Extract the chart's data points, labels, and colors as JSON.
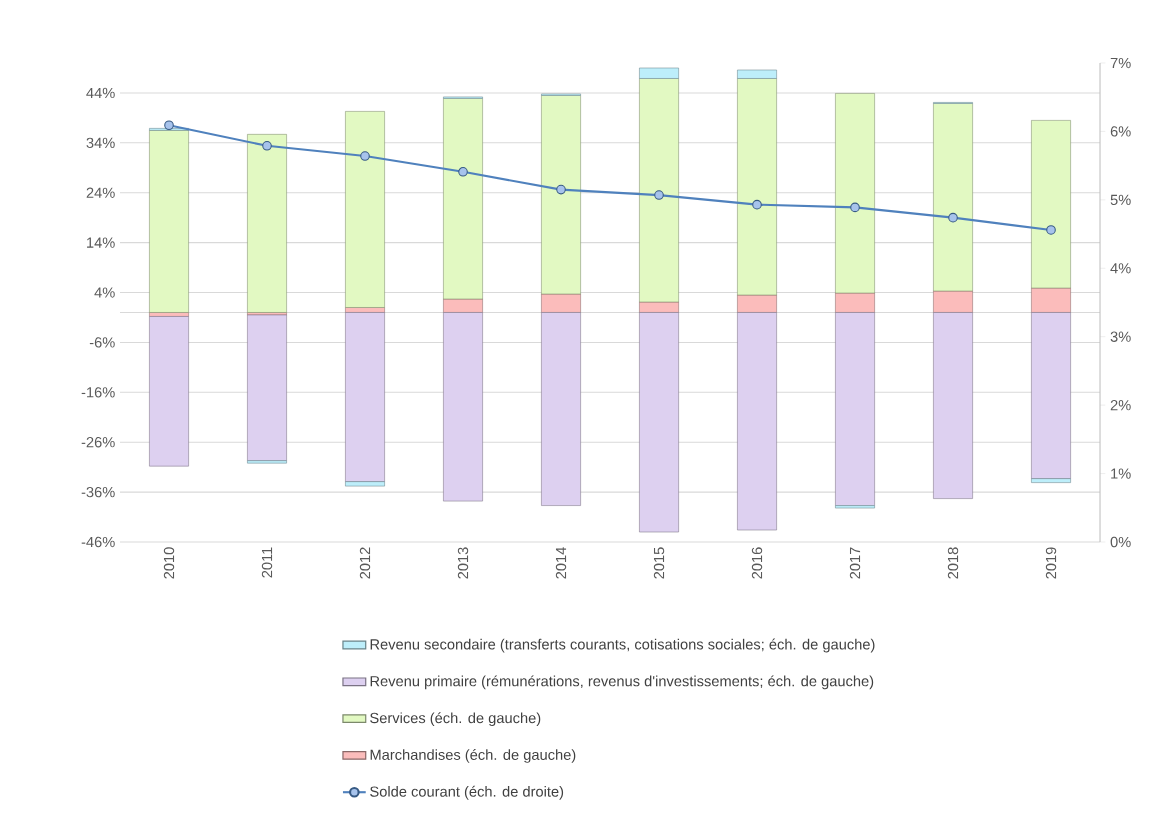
{
  "chart_data": {
    "type": "bar",
    "stacked": true,
    "categories": [
      "2010",
      "2011",
      "2012",
      "2013",
      "2014",
      "2015",
      "2016",
      "2017",
      "2018",
      "2019"
    ],
    "ylim": [
      -46,
      50
    ],
    "yticks": [
      {
        "value": 44,
        "label": "44%"
      },
      {
        "value": 34,
        "label": "34%"
      },
      {
        "value": 24,
        "label": "24%"
      },
      {
        "value": 14,
        "label": "14%"
      },
      {
        "value": 4,
        "label": "4%"
      },
      {
        "value": -6,
        "label": "-6%"
      },
      {
        "value": -16,
        "label": "-16%"
      },
      {
        "value": -26,
        "label": "-26%"
      },
      {
        "value": -36,
        "label": "-36%"
      },
      {
        "value": -46,
        "label": "-46%"
      }
    ],
    "y2lim": [
      0,
      7
    ],
    "y2ticks": [
      {
        "value": 0,
        "label": "0%"
      },
      {
        "value": 1,
        "label": "1%"
      },
      {
        "value": 2,
        "label": "2%"
      },
      {
        "value": 3,
        "label": "3%"
      },
      {
        "value": 4,
        "label": "4%"
      },
      {
        "value": 5,
        "label": "5%"
      },
      {
        "value": 6,
        "label": "6%"
      },
      {
        "value": 7,
        "label": "7%"
      }
    ],
    "grid": "y",
    "legend": "bottom",
    "marker": "circle",
    "series": [
      {
        "name": "Marchandises (éch. de gauche)",
        "color": "#fbbcbb",
        "values": [
          -0.8,
          -0.5,
          1.0,
          2.7,
          3.7,
          2.1,
          3.5,
          3.9,
          4.3,
          4.9
        ]
      },
      {
        "name": "Services (éch. de gauche)",
        "color": "#e2f9c2",
        "values": [
          36.5,
          35.7,
          39.3,
          40.2,
          39.8,
          44.8,
          43.4,
          40.0,
          37.6,
          33.6
        ]
      },
      {
        "name": "Revenu primaire (rémunérations, revenus d'investissements; éch. de gauche)",
        "color": "#ddd0f0",
        "values": [
          -30.0,
          -29.2,
          -33.9,
          -37.8,
          -38.7,
          -44.0,
          -43.6,
          -38.7,
          -37.3,
          -33.3
        ]
      },
      {
        "name": "Revenu secondaire (transferts courants, cotisations sociales; éch. de gauche)",
        "color": "#bdeefa",
        "values": [
          0.4,
          -0.5,
          -0.9,
          0.3,
          0.3,
          2.1,
          1.7,
          -0.5,
          0.2,
          -0.8
        ]
      },
      {
        "name": "Solde courant (éch. de droite)",
        "type": "line",
        "axis": "y2",
        "color": "#4f81bd",
        "values": [
          6.09,
          5.79,
          5.64,
          5.41,
          5.15,
          5.07,
          4.93,
          4.89,
          4.74,
          4.56
        ]
      }
    ]
  }
}
